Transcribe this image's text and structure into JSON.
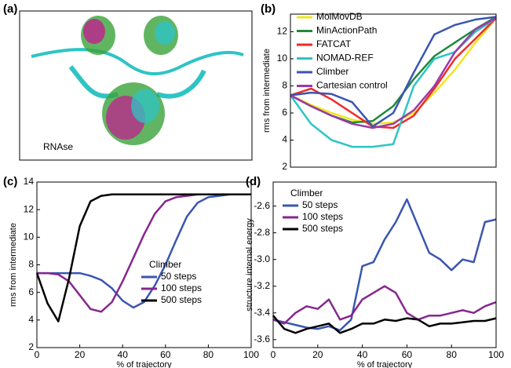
{
  "panel_labels": [
    "(a)",
    "(b)",
    "(c)",
    "(d)"
  ],
  "image_label": "RNAse",
  "chart_data": [
    {
      "type": "line",
      "ylabel": "rms from intermediate",
      "x": [
        0,
        10,
        20,
        30,
        40,
        50,
        60,
        70,
        80,
        90,
        100
      ],
      "xlim": [
        0,
        100
      ],
      "ylim": [
        2,
        13.3
      ],
      "yticks": [
        2,
        4,
        6,
        8,
        10,
        12
      ],
      "legend": "upper left",
      "series": [
        {
          "name": "MolMovDB",
          "color": "#f2e51c",
          "values": [
            7.3,
            6.6,
            6.0,
            5.5,
            5.2,
            5.3,
            6.0,
            7.5,
            9.2,
            11.2,
            13.0
          ]
        },
        {
          "name": "MinActionPath",
          "color": "#1f8a3c",
          "values": [
            7.3,
            6.5,
            5.8,
            5.3,
            5.4,
            6.5,
            8.5,
            10.2,
            11.2,
            12.2,
            13.1
          ]
        },
        {
          "name": "FATCAT",
          "color": "#f02a2a",
          "values": [
            7.3,
            7.8,
            7.0,
            6.0,
            5.0,
            4.9,
            5.8,
            7.8,
            10.0,
            11.5,
            13.0
          ]
        },
        {
          "name": "NOMAD-REF",
          "color": "#2ec4c4",
          "values": [
            7.3,
            5.2,
            4.0,
            3.5,
            3.5,
            3.7,
            8.0,
            10.0,
            10.5,
            12.0,
            13.0
          ]
        },
        {
          "name": "Climber",
          "color": "#3a56b0",
          "values": [
            7.3,
            7.5,
            7.4,
            6.8,
            5.0,
            6.0,
            9.0,
            11.8,
            12.5,
            12.9,
            13.1
          ]
        },
        {
          "name": "Cartesian control",
          "color": "#9b3aa8",
          "values": [
            7.3,
            6.5,
            5.8,
            5.2,
            4.9,
            5.2,
            6.2,
            8.0,
            10.5,
            12.2,
            13.0
          ]
        }
      ]
    },
    {
      "type": "line",
      "xlabel": "% of trajectory",
      "ylabel": "rms from intermediate",
      "x": [
        0,
        5,
        10,
        15,
        20,
        25,
        30,
        35,
        40,
        45,
        50,
        55,
        60,
        65,
        70,
        75,
        80,
        85,
        90,
        95,
        100
      ],
      "xlim": [
        0,
        100
      ],
      "xticks": [
        0,
        20,
        40,
        60,
        80,
        100
      ],
      "ylim": [
        2,
        14
      ],
      "yticks": [
        2,
        4,
        6,
        8,
        10,
        12,
        14
      ],
      "legend": "lower right",
      "legend_title": "Climber",
      "series": [
        {
          "name": "50 steps",
          "color": "#3a56b0",
          "values": [
            7.4,
            7.4,
            7.4,
            7.4,
            7.4,
            7.2,
            6.9,
            6.3,
            5.4,
            4.9,
            5.3,
            6.5,
            8.0,
            9.8,
            11.5,
            12.5,
            12.9,
            13.0,
            13.1,
            13.1,
            13.1
          ]
        },
        {
          "name": "100 steps",
          "color": "#87268f",
          "values": [
            7.4,
            7.4,
            7.3,
            6.8,
            5.8,
            4.8,
            4.6,
            5.3,
            6.8,
            8.5,
            10.2,
            11.7,
            12.6,
            12.9,
            13.0,
            13.1,
            13.1,
            13.1,
            13.1,
            13.1,
            13.1
          ]
        },
        {
          "name": "500 steps",
          "color": "#000000",
          "values": [
            7.4,
            5.2,
            3.9,
            7.0,
            10.8,
            12.6,
            13.0,
            13.1,
            13.1,
            13.1,
            13.1,
            13.1,
            13.1,
            13.1,
            13.1,
            13.1,
            13.1,
            13.1,
            13.1,
            13.1,
            13.1
          ]
        }
      ]
    },
    {
      "type": "line",
      "xlabel": "% of trajectory",
      "ylabel": "structure internal energy",
      "x": [
        0,
        5,
        10,
        15,
        20,
        25,
        30,
        35,
        40,
        45,
        50,
        55,
        60,
        65,
        70,
        75,
        80,
        85,
        90,
        95,
        100
      ],
      "xlim": [
        0,
        100
      ],
      "xticks": [
        0,
        20,
        40,
        60,
        80,
        100
      ],
      "ylim": [
        -3.66,
        -2.42
      ],
      "yticks": [
        {
          "value": -3.6,
          "label": "-3.6"
        },
        {
          "value": -3.4,
          "label": "-3.4"
        },
        {
          "value": -3.2,
          "label": "-3.2"
        },
        {
          "value": -3,
          "label": "-3.0"
        },
        {
          "value": -2.8,
          "label": "-2.8"
        },
        {
          "value": -2.6,
          "label": "-2.6"
        }
      ],
      "legend": "upper left",
      "legend_title": "Climber",
      "series": [
        {
          "name": "50 steps",
          "color": "#3a56b0",
          "values": [
            -3.45,
            -3.47,
            -3.49,
            -3.51,
            -3.52,
            -3.5,
            -3.53,
            -3.45,
            -3.05,
            -3.02,
            -2.85,
            -2.72,
            -2.55,
            -2.75,
            -2.95,
            -3.0,
            -3.08,
            -3.0,
            -3.02,
            -2.72,
            -2.7
          ]
        },
        {
          "name": "100 steps",
          "color": "#87268f",
          "values": [
            -3.45,
            -3.48,
            -3.4,
            -3.35,
            -3.37,
            -3.3,
            -3.45,
            -3.42,
            -3.3,
            -3.25,
            -3.2,
            -3.25,
            -3.4,
            -3.45,
            -3.42,
            -3.42,
            -3.4,
            -3.38,
            -3.4,
            -3.35,
            -3.32
          ]
        },
        {
          "name": "500 steps",
          "color": "#000000",
          "values": [
            -3.42,
            -3.52,
            -3.55,
            -3.52,
            -3.5,
            -3.48,
            -3.55,
            -3.52,
            -3.48,
            -3.48,
            -3.45,
            -3.46,
            -3.44,
            -3.45,
            -3.5,
            -3.48,
            -3.48,
            -3.47,
            -3.46,
            -3.46,
            -3.44
          ]
        }
      ]
    }
  ]
}
